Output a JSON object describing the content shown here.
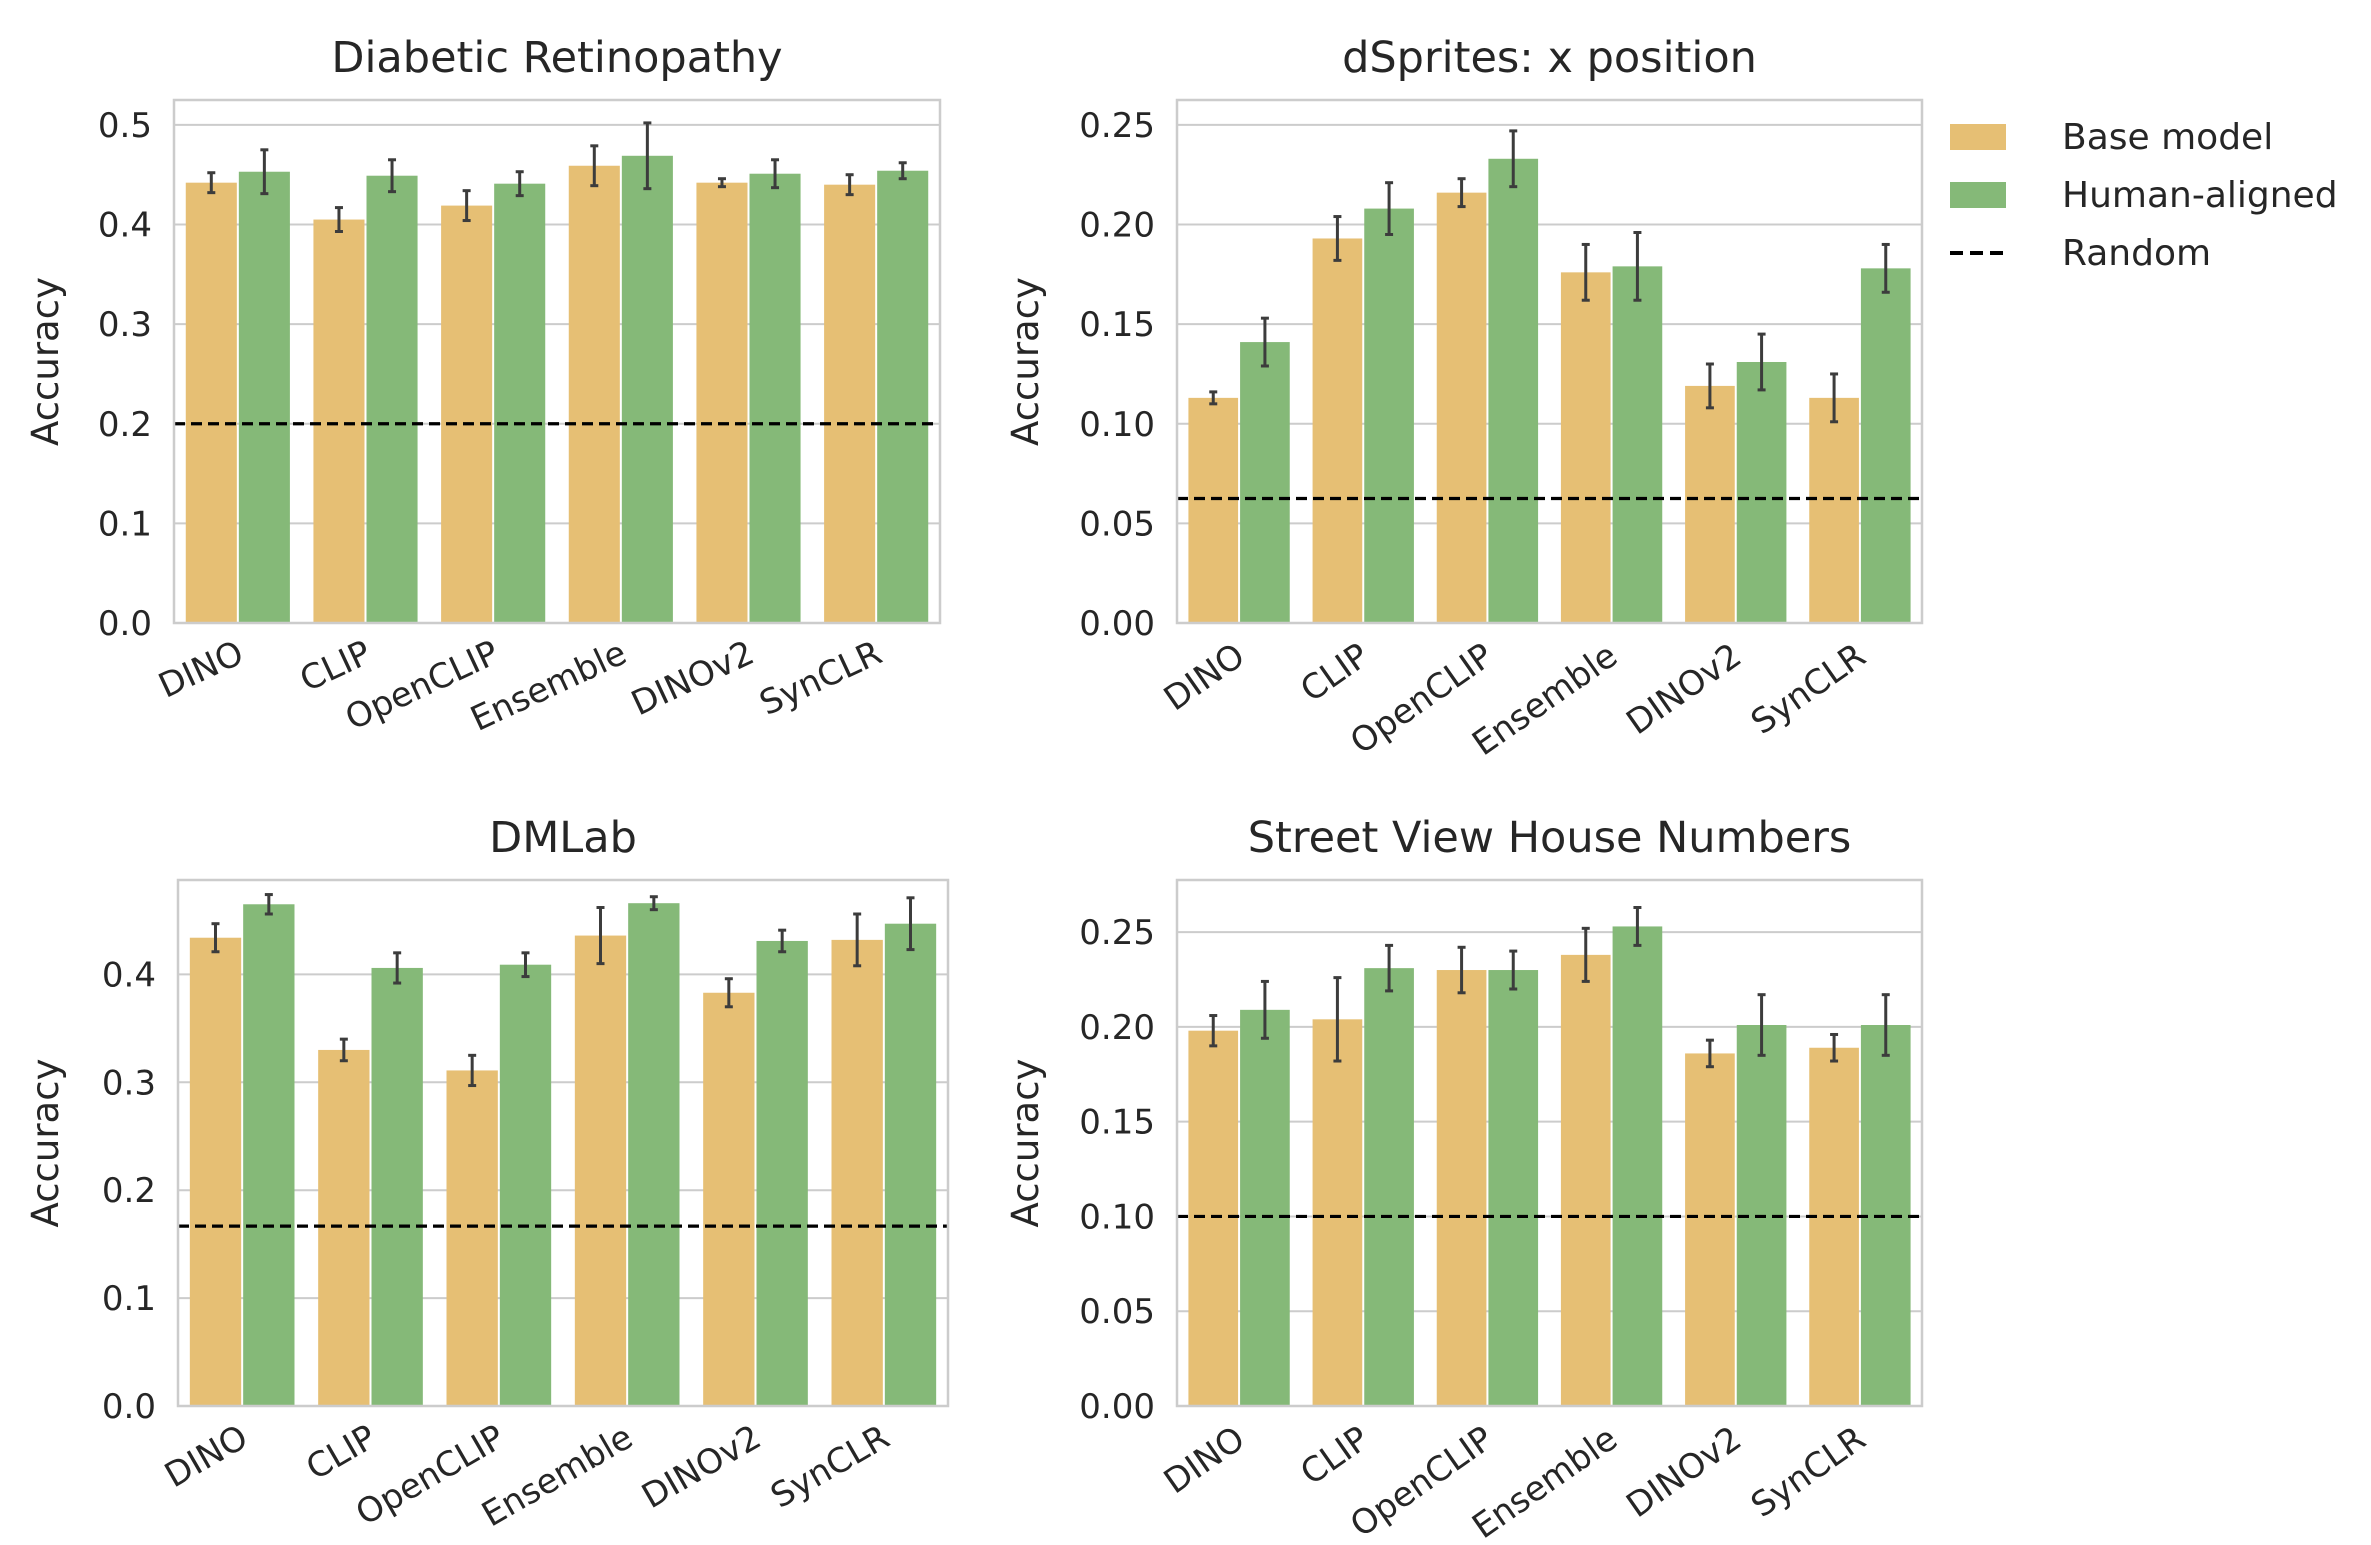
{
  "colors": {
    "base": "#e6bf74",
    "human": "#85b978",
    "grid": "#cccccc",
    "frame": "#cccccc",
    "errorbar": "#3c3c3c",
    "random_line": "#000000"
  },
  "legend": {
    "placement": "right of top-right chart",
    "items": [
      {
        "label": "Base model",
        "color": "#e6bf74",
        "kind": "patch"
      },
      {
        "label": "Human-aligned",
        "color": "#85b978",
        "kind": "patch"
      },
      {
        "label": "Random",
        "color": "#000000",
        "kind": "dashed-line"
      }
    ]
  },
  "chart_data": [
    {
      "type": "bar",
      "title": "Diabetic Retinopathy",
      "ylabel": "Accuracy",
      "xlabel": "",
      "ylim": [
        0,
        0.525
      ],
      "yticks": [
        "0.0",
        "0.1",
        "0.2",
        "0.3",
        "0.4",
        "0.5"
      ],
      "ytick_values": [
        0,
        0.1,
        0.2,
        0.3,
        0.4,
        0.5
      ],
      "grid": "horizontal",
      "categories": [
        "DINO",
        "CLIP",
        "OpenCLIP",
        "Ensemble",
        "DINOv2",
        "SynCLR"
      ],
      "series": [
        {
          "name": "Base model",
          "values": [
            0.442,
            0.405,
            0.419,
            0.459,
            0.442,
            0.44
          ],
          "err": [
            0.01,
            0.012,
            0.015,
            0.02,
            0.004,
            0.01
          ]
        },
        {
          "name": "Human-aligned",
          "values": [
            0.453,
            0.449,
            0.441,
            0.469,
            0.451,
            0.454
          ],
          "err": [
            0.022,
            0.016,
            0.012,
            0.033,
            0.014,
            0.008
          ]
        }
      ],
      "random": 0.2
    },
    {
      "type": "bar",
      "title": "dSprites: x position",
      "ylabel": "Accuracy",
      "xlabel": "",
      "ylim": [
        0,
        0.2625
      ],
      "yticks": [
        "0.00",
        "0.05",
        "0.10",
        "0.15",
        "0.20",
        "0.25"
      ],
      "ytick_values": [
        0,
        0.05,
        0.1,
        0.15,
        0.2,
        0.25
      ],
      "grid": "horizontal",
      "categories": [
        "DINO",
        "CLIP",
        "OpenCLIP",
        "Ensemble",
        "DINOv2",
        "SynCLR"
      ],
      "series": [
        {
          "name": "Base model",
          "values": [
            0.113,
            0.193,
            0.216,
            0.176,
            0.119,
            0.113
          ],
          "err": [
            0.003,
            0.011,
            0.007,
            0.014,
            0.011,
            0.012
          ]
        },
        {
          "name": "Human-aligned",
          "values": [
            0.141,
            0.208,
            0.233,
            0.179,
            0.131,
            0.178
          ],
          "err": [
            0.012,
            0.013,
            0.014,
            0.017,
            0.014,
            0.012
          ]
        }
      ],
      "random": 0.0625
    },
    {
      "type": "bar",
      "title": "DMLab",
      "ylabel": "Accuracy",
      "xlabel": "",
      "ylim": [
        0,
        0.4875
      ],
      "yticks": [
        "0.0",
        "0.1",
        "0.2",
        "0.3",
        "0.4"
      ],
      "ytick_values": [
        0,
        0.1,
        0.2,
        0.3,
        0.4
      ],
      "grid": "horizontal",
      "categories": [
        "DINO",
        "CLIP",
        "OpenCLIP",
        "Ensemble",
        "DINOv2",
        "SynCLR"
      ],
      "series": [
        {
          "name": "Base model",
          "values": [
            0.434,
            0.33,
            0.311,
            0.436,
            0.383,
            0.432
          ],
          "err": [
            0.013,
            0.01,
            0.014,
            0.026,
            0.013,
            0.024
          ]
        },
        {
          "name": "Human-aligned",
          "values": [
            0.465,
            0.406,
            0.409,
            0.466,
            0.431,
            0.447
          ],
          "err": [
            0.009,
            0.014,
            0.011,
            0.006,
            0.01,
            0.024
          ]
        }
      ],
      "random": 0.1667
    },
    {
      "type": "bar",
      "title": "Street View House Numbers",
      "ylabel": "Accuracy",
      "xlabel": "",
      "ylim": [
        0,
        0.2775
      ],
      "yticks": [
        "0.00",
        "0.05",
        "0.10",
        "0.15",
        "0.20",
        "0.25"
      ],
      "ytick_values": [
        0,
        0.05,
        0.1,
        0.15,
        0.2,
        0.25
      ],
      "grid": "horizontal",
      "categories": [
        "DINO",
        "CLIP",
        "OpenCLIP",
        "Ensemble",
        "DINOv2",
        "SynCLR"
      ],
      "series": [
        {
          "name": "Base model",
          "values": [
            0.198,
            0.204,
            0.23,
            0.238,
            0.186,
            0.189
          ],
          "err": [
            0.008,
            0.022,
            0.012,
            0.014,
            0.007,
            0.007
          ]
        },
        {
          "name": "Human-aligned",
          "values": [
            0.209,
            0.231,
            0.23,
            0.253,
            0.201,
            0.201
          ],
          "err": [
            0.015,
            0.012,
            0.01,
            0.01,
            0.016,
            0.016
          ]
        }
      ],
      "random": 0.1
    }
  ]
}
